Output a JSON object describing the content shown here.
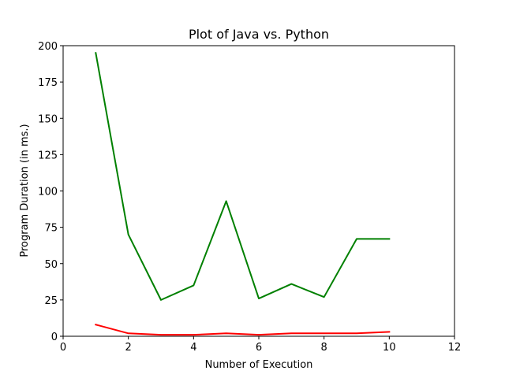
{
  "chart_data": {
    "type": "line",
    "title": "Plot of Java vs. Python",
    "xlabel": "Number of Execution",
    "ylabel": "Program Duration (in ms.)",
    "xlim": [
      0,
      12
    ],
    "ylim": [
      0,
      200
    ],
    "x_ticks": [
      "0",
      "2",
      "4",
      "6",
      "8",
      "10",
      "12"
    ],
    "y_ticks": [
      "0",
      "25",
      "50",
      "75",
      "100",
      "125",
      "150",
      "175",
      "200"
    ],
    "grid": false,
    "legend": "none",
    "x": [
      1,
      2,
      3,
      4,
      5,
      6,
      7,
      8,
      9,
      10
    ],
    "series": [
      {
        "color": "#008000",
        "values": [
          195,
          70,
          25,
          35,
          93,
          26,
          36,
          27,
          67,
          67
        ]
      },
      {
        "color": "#ff0000",
        "values": [
          8,
          2,
          1,
          1,
          2,
          1,
          2,
          2,
          2,
          3
        ]
      }
    ]
  }
}
